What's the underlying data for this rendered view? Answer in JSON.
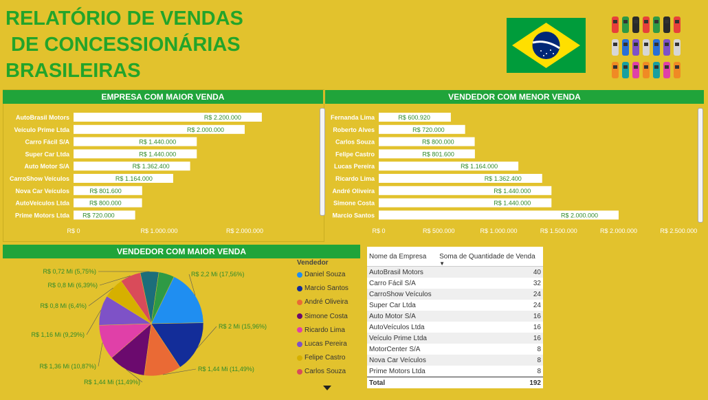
{
  "title_lines": [
    "RELATÓRIO DE VENDAS",
    " DE CONCESSIONÁRIAS",
    "BRASILEIRAS"
  ],
  "colors": {
    "background": "#e2c22d",
    "green": "#20a43a",
    "title_green": "#23a42a",
    "label_green": "#2f8a2a",
    "flag_blue": "#002776"
  },
  "icons": {
    "flag": "brazil-flag-icon",
    "cars": "cars-top-view-icon"
  },
  "chart_data": [
    {
      "type": "bar",
      "orientation": "horizontal",
      "title": "EMPRESA COM MAIOR VENDA",
      "categories": [
        "AutoBrasil Motors",
        "Veículo Prime Ltda",
        "Carro Fácil S/A",
        "Super Car Ltda",
        "Auto Motor S/A",
        "CarroShow Veículos",
        "Nova Car Veículos",
        "AutoVeículos Ltda",
        "Prime Motors Ltda"
      ],
      "values": [
        2200000,
        2000000,
        1440000,
        1440000,
        1362400,
        1164000,
        801600,
        800000,
        720000
      ],
      "value_labels": [
        "R$ 2.200.000",
        "R$ 2.000.000",
        "R$ 1.440.000",
        "R$ 1.440.000",
        "R$ 1.362.400",
        "R$ 1.164.000",
        "R$ 801.600",
        "R$ 800.000",
        "R$ 720.000"
      ],
      "xlim": [
        0,
        2400000
      ],
      "xticks": [
        0,
        1000000,
        2000000
      ],
      "xtick_labels": [
        "R$ 0",
        "R$ 1.000.000",
        "R$ 2.000.000"
      ]
    },
    {
      "type": "bar",
      "orientation": "horizontal",
      "title": "VENDEDOR COM MENOR VENDA",
      "categories": [
        "Fernanda Lima",
        "Roberto Alves",
        "Carlos Souza",
        "Felipe Castro",
        "Lucas Pereira",
        "Ricardo Lima",
        "André Oliveira",
        "Simone Costa",
        "Marcio Santos"
      ],
      "values": [
        600920,
        720000,
        800000,
        801600,
        1164000,
        1362400,
        1440000,
        1440000,
        2000000
      ],
      "value_labels": [
        "R$ 600.920",
        "R$ 720.000",
        "R$ 800.000",
        "R$ 801.600",
        "R$ 1.164.000",
        "R$ 1.362.400",
        "R$ 1.440.000",
        "R$ 1.440.000",
        "R$ 2.000.000"
      ],
      "xlim": [
        0,
        2500000
      ],
      "xticks": [
        0,
        500000,
        1000000,
        1500000,
        2000000,
        2500000
      ],
      "xtick_labels": [
        "R$ 0",
        "R$ 500.000",
        "R$ 1.000.000",
        "R$ 1.500.000",
        "R$ 2.000.000",
        "R$ 2.500.000"
      ]
    },
    {
      "type": "pie",
      "title": "VENDEDOR COM MAIOR VENDA",
      "legend_title": "Vendedor",
      "legend_placement": "right",
      "slices": [
        {
          "name": "Daniel Souza",
          "percent": 17.56,
          "label": "R$ 2,2 Mi (17,56%)",
          "color": "#1f8ef1"
        },
        {
          "name": "Marcio Santos",
          "percent": 15.96,
          "label": "R$ 2 Mi (15,96%)",
          "color": "#132d99"
        },
        {
          "name": "André Oliveira",
          "percent": 11.49,
          "label": "R$ 1,44 Mi (11,49%)",
          "color": "#ea6a35"
        },
        {
          "name": "Simone Costa",
          "percent": 11.49,
          "label": "R$ 1,44 Mi (11,49%)",
          "color": "#6b0a6e"
        },
        {
          "name": "Ricardo Lima",
          "percent": 10.87,
          "label": "R$ 1,36 Mi (10,87%)",
          "color": "#e040a8"
        },
        {
          "name": "Lucas Pereira",
          "percent": 9.29,
          "label": "R$ 1,16 Mi (9,29%)",
          "color": "#7e52c7"
        },
        {
          "name": "Felipe Castro",
          "percent": 6.4,
          "label": "R$ 0,8 Mi (6,4%)",
          "color": "#d6b000"
        },
        {
          "name": "Carlos Souza",
          "percent": 6.39,
          "label": "R$ 0,8 Mi (6,39%)",
          "color": "#d94b5a"
        },
        {
          "name": "",
          "percent": 5.75,
          "label": "R$ 0,72 Mi (5,75%)",
          "color": "#1c6e7a"
        },
        {
          "name": "",
          "percent": 4.8,
          "label": "",
          "color": "#2e9a45"
        }
      ]
    }
  ],
  "table": {
    "headers": [
      "Nome da Empresa",
      "Soma de Quantidade de Venda"
    ],
    "rows": [
      [
        "AutoBrasil Motors",
        "40"
      ],
      [
        "Carro Fácil S/A",
        "32"
      ],
      [
        "CarroShow Veículos",
        "24"
      ],
      [
        "Super Car Ltda",
        "24"
      ],
      [
        "Auto Motor S/A",
        "16"
      ],
      [
        "AutoVeículos Ltda",
        "16"
      ],
      [
        "Veículo Prime Ltda",
        "16"
      ],
      [
        "MotorCenter S/A",
        "8"
      ],
      [
        "Nova Car Veículos",
        "8"
      ],
      [
        "Prime Motors Ltda",
        "8"
      ]
    ],
    "total_label": "Total",
    "total_value": "192"
  }
}
